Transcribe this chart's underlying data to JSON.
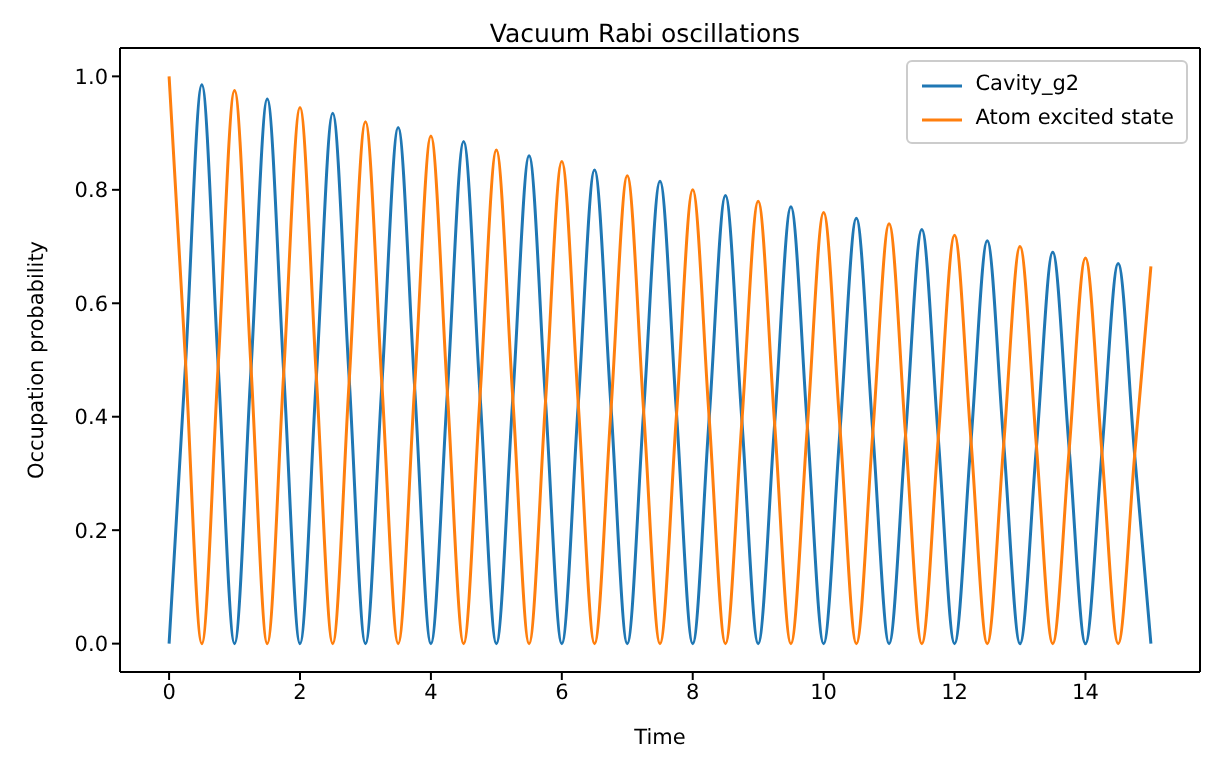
{
  "chart_data": {
    "type": "line",
    "title": "Vacuum Rabi oscillations",
    "xlabel": "Time",
    "ylabel": "Occupation probability",
    "x": [
      0,
      0.25,
      0.5,
      0.75,
      1,
      1.25,
      1.5,
      1.75,
      2,
      2.25,
      2.5,
      2.75,
      3,
      3.25,
      3.5,
      3.75,
      4,
      4.25,
      4.5,
      4.75,
      5,
      5.25,
      5.5,
      5.75,
      6,
      6.25,
      6.5,
      6.75,
      7,
      7.25,
      7.5,
      7.75,
      8,
      8.25,
      8.5,
      8.75,
      9,
      9.25,
      9.5,
      9.75,
      10,
      10.25,
      10.5,
      10.75,
      11,
      11.25,
      11.5,
      11.75,
      12,
      12.25,
      12.5,
      12.75,
      13,
      13.25,
      13.5,
      13.75,
      14,
      14.25,
      14.5,
      14.75,
      15
    ],
    "series": [
      {
        "name": "Cavity_g2",
        "color": "#1f77b4",
        "values": [
          0,
          0.49,
          0.985,
          0.49,
          0,
          0.48,
          0.96,
          0.48,
          0,
          0.47,
          0.935,
          0.47,
          0,
          0.455,
          0.91,
          0.455,
          0,
          0.44,
          0.885,
          0.44,
          0,
          0.43,
          0.86,
          0.43,
          0,
          0.42,
          0.835,
          0.42,
          0,
          0.41,
          0.815,
          0.41,
          0,
          0.395,
          0.79,
          0.395,
          0,
          0.385,
          0.77,
          0.385,
          0,
          0.375,
          0.75,
          0.375,
          0,
          0.365,
          0.73,
          0.365,
          0,
          0.355,
          0.71,
          0.355,
          0,
          0.345,
          0.69,
          0.345,
          0,
          0.335,
          0.67,
          0.335,
          0
        ]
      },
      {
        "name": "Atom excited state",
        "color": "#ff7f0e",
        "values": [
          1,
          0.5,
          0,
          0.49,
          0.975,
          0.49,
          0,
          0.475,
          0.945,
          0.47,
          0,
          0.46,
          0.92,
          0.46,
          0,
          0.45,
          0.895,
          0.445,
          0,
          0.435,
          0.87,
          0.435,
          0,
          0.425,
          0.85,
          0.425,
          0,
          0.41,
          0.825,
          0.41,
          0,
          0.4,
          0.8,
          0.4,
          0,
          0.39,
          0.78,
          0.39,
          0,
          0.38,
          0.76,
          0.38,
          0,
          0.37,
          0.74,
          0.37,
          0,
          0.36,
          0.72,
          0.36,
          0,
          0.35,
          0.7,
          0.35,
          0,
          0.34,
          0.68,
          0.34,
          0,
          0.33,
          0.665
        ]
      }
    ],
    "xlim": [
      -0.75,
      15.75
    ],
    "xticks": [
      0,
      2,
      4,
      6,
      8,
      10,
      12,
      14
    ],
    "ylim": [
      -0.05,
      1.05
    ],
    "yticks": [
      {
        "value": 0,
        "label": "0.0"
      },
      0.2,
      0.4,
      0.6,
      0.8,
      {
        "value": 1,
        "label": "1.0"
      }
    ],
    "grid": false,
    "legend": "top right",
    "marker": "none",
    "line_style": "solid"
  }
}
